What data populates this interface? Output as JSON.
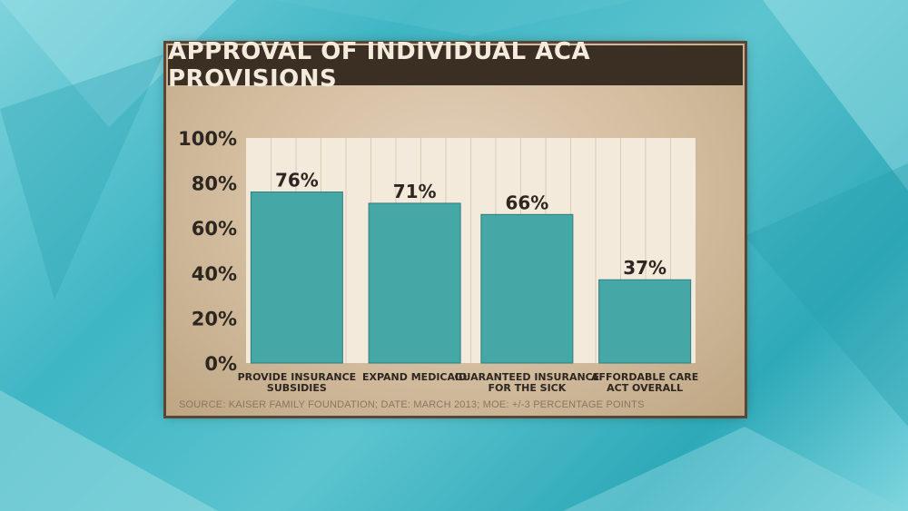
{
  "colors": {
    "background": "#3fb6c4",
    "board": "#d3bd9f",
    "title_bar": "#3b2e22",
    "title_text": "#f4ebdc",
    "bar": "#45a7a6",
    "bar_stroke": "#2f7f7e",
    "plot_area": "#f3eadc",
    "grid": "#d8cbb8",
    "text": "#2e2620",
    "source_text": "#8a7660"
  },
  "chart_data": {
    "type": "bar",
    "title": "APPROVAL OF INDIVIDUAL ACA PROVISIONS",
    "categories": [
      [
        "PROVIDE INSURANCE",
        "SUBSIDIES"
      ],
      [
        "EXPAND MEDICAID"
      ],
      [
        "GUARANTEED INSURANCE",
        "FOR THE SICK"
      ],
      [
        "AFFORDABLE CARE",
        "ACT OVERALL"
      ]
    ],
    "values": [
      76,
      71,
      66,
      37
    ],
    "value_labels": [
      "76%",
      "71%",
      "66%",
      "37%"
    ],
    "ylim": [
      0,
      100
    ],
    "yticks": [
      0,
      20,
      40,
      60,
      80,
      100
    ],
    "ytick_labels": [
      "0%",
      "20%",
      "40%",
      "60%",
      "80%",
      "100%"
    ],
    "grid": true,
    "legend": "none",
    "source": "SOURCE: KAISER FAMILY FOUNDATION; DATE: MARCH 2013; MOE: +/-3 PERCENTAGE POINTS"
  }
}
